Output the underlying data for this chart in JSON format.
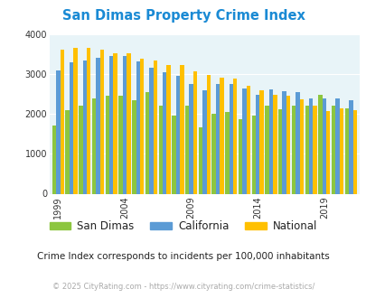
{
  "title": "San Dimas Property Crime Index",
  "years": [
    1999,
    2000,
    2001,
    2002,
    2003,
    2004,
    2005,
    2006,
    2007,
    2008,
    2009,
    2010,
    2011,
    2012,
    2013,
    2014,
    2015,
    2016,
    2017,
    2018,
    2019,
    2020,
    2021
  ],
  "san_dimas": [
    1700,
    2100,
    2200,
    2400,
    2450,
    2450,
    2350,
    2550,
    2200,
    1950,
    2220,
    1670,
    2000,
    2060,
    1880,
    1950,
    2200,
    2120,
    2200,
    2200,
    2470,
    2200,
    2130
  ],
  "california": [
    3100,
    3300,
    3350,
    3400,
    3450,
    3450,
    3320,
    3150,
    3040,
    2950,
    2750,
    2600,
    2750,
    2760,
    2650,
    2470,
    2620,
    2580,
    2550,
    2400,
    2390,
    2400,
    2350
  ],
  "national": [
    3620,
    3650,
    3660,
    3610,
    3530,
    3530,
    3380,
    3350,
    3230,
    3220,
    3060,
    2970,
    2910,
    2880,
    2710,
    2600,
    2490,
    2460,
    2360,
    2200,
    2080,
    2150,
    2100
  ],
  "san_dimas_color": "#8cc63f",
  "california_color": "#5b9bd5",
  "national_color": "#ffc000",
  "bg_color": "#e8f4f8",
  "ylim": [
    0,
    4000
  ],
  "ylabel_ticks": [
    0,
    1000,
    2000,
    3000,
    4000
  ],
  "subtitle": "Crime Index corresponds to incidents per 100,000 inhabitants",
  "footer": "© 2025 CityRating.com - https://www.cityrating.com/crime-statistics/",
  "title_color": "#1a8ad4",
  "subtitle_color": "#222222",
  "footer_color": "#aaaaaa"
}
